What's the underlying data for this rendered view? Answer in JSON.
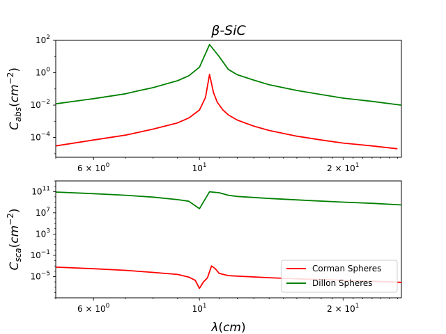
{
  "figure": {
    "title": "β-SiC"
  },
  "chart_data": [
    {
      "type": "line",
      "title": "β-SiC",
      "xlabel": "",
      "ylabel": "C_abs(cm^-2)",
      "xscale": "log",
      "yscale": "log",
      "xlim": [
        5.0,
        26.5
      ],
      "ylim": [
        6e-06,
        100
      ],
      "x_ticks": [
        {
          "value": 6,
          "label": "6 × 10^0"
        },
        {
          "value": 10,
          "label": "10^1"
        },
        {
          "value": 20,
          "label": "2 × 10^1"
        }
      ],
      "y_ticks": [
        {
          "value": 0.0001,
          "label": "10^-4"
        },
        {
          "value": 0.01,
          "label": "10^-2"
        },
        {
          "value": 1,
          "label": "10^0"
        },
        {
          "value": 100,
          "label": "10^2"
        }
      ],
      "grid": false,
      "series": [
        {
          "name": "Corman Spheres",
          "color": "#ff0000",
          "x": [
            5.0,
            6.0,
            7.0,
            8.0,
            9.0,
            9.5,
            10.0,
            10.3,
            10.5,
            10.7,
            10.9,
            11.2,
            11.5,
            12.0,
            13.0,
            14.0,
            16.0,
            18.0,
            20.0,
            23.0,
            26.0
          ],
          "y": [
            3e-05,
            7e-05,
            0.00014,
            0.00033,
            0.0008,
            0.0016,
            0.005,
            0.03,
            0.8,
            0.06,
            0.015,
            0.005,
            0.0025,
            0.0012,
            0.0005,
            0.00027,
            0.00012,
            7e-05,
            4.5e-05,
            3e-05,
            2e-05
          ]
        },
        {
          "name": "Dillon Spheres",
          "color": "#008000",
          "x": [
            5.0,
            6.0,
            7.0,
            7.5,
            8.0,
            8.5,
            9.0,
            9.5,
            10.0,
            10.5,
            11.0,
            11.5,
            12.0,
            13.0,
            14.0,
            16.0,
            18.0,
            20.0,
            23.0,
            26.5
          ],
          "y": [
            0.012,
            0.025,
            0.05,
            0.08,
            0.12,
            0.2,
            0.32,
            0.65,
            2.2,
            55,
            10,
            1.6,
            0.75,
            0.35,
            0.18,
            0.08,
            0.045,
            0.027,
            0.017,
            0.01
          ]
        }
      ]
    },
    {
      "type": "line",
      "title": "",
      "xlabel": "λ(cm)",
      "ylabel": "C_sca(cm^-2)",
      "xscale": "log",
      "yscale": "log",
      "xlim": [
        5.0,
        26.5
      ],
      "ylim": [
        1e-09,
        10000000000000.0
      ],
      "x_ticks": [
        {
          "value": 6,
          "label": "6 × 10^0"
        },
        {
          "value": 10,
          "label": "10^1"
        },
        {
          "value": 20,
          "label": "2 × 10^1"
        }
      ],
      "y_ticks": [
        {
          "value": 1e-05,
          "label": "10^-5"
        },
        {
          "value": 0.1,
          "label": "10^-1"
        },
        {
          "value": 1000,
          "label": "10^3"
        },
        {
          "value": 10000000,
          "label": "10^7"
        },
        {
          "value": 100000000000,
          "label": "10^11"
        }
      ],
      "grid": false,
      "legend": {
        "position": "lower right",
        "entries": [
          "Corman Spheres",
          "Dillon Spheres"
        ]
      },
      "series": [
        {
          "name": "Corman Spheres",
          "color": "#ff0000",
          "x": [
            5.0,
            6.0,
            7.0,
            8.0,
            9.0,
            9.5,
            9.8,
            10.0,
            10.2,
            10.4,
            10.6,
            10.8,
            11.0,
            11.5,
            12.0,
            14.0,
            17.0,
            20.0,
            23.0,
            26.5
          ],
          "y": [
            0.0006,
            0.0003,
            0.00015,
            6e-05,
            2.5e-05,
            8e-06,
            2e-06,
            6e-08,
            1e-06,
            6e-06,
            0.001,
            0.0003,
            4e-05,
            1.5e-05,
            1.2e-05,
            6e-06,
            3e-06,
            2e-06,
            1.3e-06,
            8e-07
          ]
        },
        {
          "name": "Dillon Spheres",
          "color": "#008000",
          "x": [
            5.0,
            6.0,
            7.0,
            8.0,
            9.0,
            9.5,
            10.0,
            10.5,
            11.0,
            11.5,
            12.0,
            14.0,
            17.0,
            20.0,
            23.0,
            26.5
          ],
          "y": [
            80000000000,
            40000000000,
            20000000000,
            9000000000,
            3000000000,
            1500000000,
            60000000,
            90000000000,
            60000000000,
            20000000000,
            12000000000,
            5000000000,
            2000000000,
            1000000000,
            600000000,
            300000000
          ]
        }
      ]
    }
  ]
}
